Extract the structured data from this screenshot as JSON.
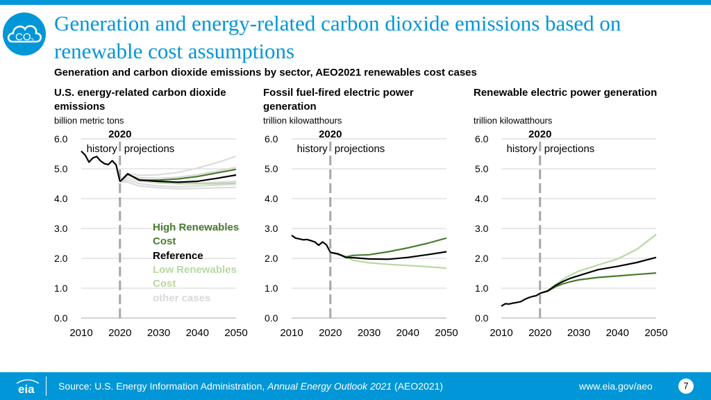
{
  "slide": {
    "title": "Generation and energy-related carbon dioxide emissions based on renewable cost assumptions",
    "subtitle": "Generation and carbon dioxide emissions by sector, AEO2021 renewables cost cases",
    "logo_text": "CO",
    "logo_subscript": "2"
  },
  "footer": {
    "source_prefix": "Source: U.S. Energy Information Administration, ",
    "source_italic": "Annual Energy Outlook 2021",
    "source_suffix": " (AEO2021)",
    "url": "www.eia.gov/aeo",
    "page_number": "7",
    "logo_text": "eia"
  },
  "colors": {
    "brand_blue": "#0096d7",
    "high_renewables": "#4a7a2e",
    "reference": "#000000",
    "low_renewables": "#b7d9a0",
    "other_cases": "#d9d9d9",
    "divider": "#a6a6a6"
  },
  "legend": {
    "high_renewables": "High Renewables Cost",
    "reference": "Reference",
    "low_renewables": "Low Renewables Cost",
    "other_cases": "other cases"
  },
  "chart_data": [
    {
      "type": "line",
      "title": "U.S. energy-related carbon dioxide emissions",
      "unit": "billion metric tons",
      "divider_year": "2020",
      "history_label": "history",
      "projections_label": "projections",
      "xlim": [
        2010,
        2050
      ],
      "ylim": [
        0,
        6
      ],
      "xticks": [
        "2010",
        "2020",
        "2030",
        "2040",
        "2050"
      ],
      "yticks": [
        "0.0",
        "1.0",
        "2.0",
        "3.0",
        "4.0",
        "5.0",
        "6.0"
      ],
      "history": {
        "x": [
          2010,
          2011,
          2012,
          2013,
          2014,
          2015,
          2016,
          2017,
          2018,
          2019,
          2020
        ],
        "values": [
          5.59,
          5.46,
          5.22,
          5.36,
          5.41,
          5.26,
          5.17,
          5.14,
          5.27,
          5.13,
          4.57
        ]
      },
      "series": [
        {
          "name": "other cases",
          "color": "#d9d9d9",
          "x": [
            2020,
            2022,
            2025,
            2030,
            2035,
            2040,
            2045,
            2050
          ],
          "values": [
            4.57,
            4.85,
            4.78,
            4.8,
            4.88,
            5.02,
            5.2,
            5.42
          ]
        },
        {
          "name": "other cases",
          "color": "#d9d9d9",
          "x": [
            2020,
            2022,
            2025,
            2030,
            2035,
            2040,
            2045,
            2050
          ],
          "values": [
            4.57,
            4.78,
            4.7,
            4.68,
            4.72,
            4.8,
            4.92,
            5.05
          ]
        },
        {
          "name": "other cases",
          "color": "#d9d9d9",
          "x": [
            2020,
            2022,
            2025,
            2030,
            2035,
            2040,
            2045,
            2050
          ],
          "values": [
            4.57,
            4.7,
            4.58,
            4.52,
            4.5,
            4.52,
            4.55,
            4.58
          ]
        },
        {
          "name": "other cases",
          "color": "#d9d9d9",
          "x": [
            2020,
            2022,
            2025,
            2030,
            2035,
            2040,
            2045,
            2050
          ],
          "values": [
            4.57,
            4.62,
            4.5,
            4.42,
            4.4,
            4.42,
            4.45,
            4.48
          ]
        },
        {
          "name": "other cases",
          "color": "#d9d9d9",
          "x": [
            2020,
            2022,
            2025,
            2030,
            2035,
            2040,
            2045,
            2050
          ],
          "values": [
            4.57,
            4.55,
            4.42,
            4.36,
            4.33,
            4.34,
            4.36,
            4.38
          ]
        },
        {
          "name": "Low Renewables Cost",
          "color": "#b7d9a0",
          "x": [
            2020,
            2022,
            2025,
            2030,
            2035,
            2040,
            2045,
            2050
          ],
          "values": [
            4.57,
            4.8,
            4.65,
            4.55,
            4.5,
            4.5,
            4.5,
            4.52
          ]
        },
        {
          "name": "High Renewables Cost",
          "color": "#4a7a2e",
          "x": [
            2020,
            2022,
            2025,
            2030,
            2035,
            2040,
            2045,
            2050
          ],
          "values": [
            4.57,
            4.82,
            4.62,
            4.62,
            4.66,
            4.74,
            4.86,
            4.98
          ]
        },
        {
          "name": "Reference",
          "color": "#000000",
          "x": [
            2020,
            2022,
            2025,
            2030,
            2035,
            2040,
            2045,
            2050
          ],
          "values": [
            4.57,
            4.83,
            4.62,
            4.58,
            4.55,
            4.58,
            4.68,
            4.79
          ]
        }
      ]
    },
    {
      "type": "line",
      "title": "Fossil fuel-fired electric power generation",
      "unit": "trillion kilowatthours",
      "divider_year": "2020",
      "history_label": "history",
      "projections_label": "projections",
      "xlim": [
        2010,
        2050
      ],
      "ylim": [
        0,
        6
      ],
      "xticks": [
        "2010",
        "2020",
        "2030",
        "2040",
        "2050"
      ],
      "yticks": [
        "0.0",
        "1.0",
        "2.0",
        "3.0",
        "4.0",
        "5.0",
        "6.0"
      ],
      "history": {
        "x": [
          2010,
          2011,
          2012,
          2013,
          2014,
          2015,
          2016,
          2017,
          2018,
          2019,
          2020
        ],
        "values": [
          2.77,
          2.68,
          2.65,
          2.62,
          2.63,
          2.59,
          2.55,
          2.44,
          2.55,
          2.45,
          2.2
        ]
      },
      "series": [
        {
          "name": "Low Renewables Cost",
          "color": "#b7d9a0",
          "x": [
            2020,
            2022,
            2024,
            2026,
            2030,
            2035,
            2040,
            2045,
            2050
          ],
          "values": [
            2.2,
            2.12,
            2.05,
            1.93,
            1.85,
            1.8,
            1.76,
            1.72,
            1.67
          ]
        },
        {
          "name": "High Renewables Cost",
          "color": "#4a7a2e",
          "x": [
            2020,
            2022,
            2024,
            2026,
            2030,
            2035,
            2040,
            2045,
            2050
          ],
          "values": [
            2.2,
            2.15,
            2.05,
            2.1,
            2.12,
            2.22,
            2.35,
            2.5,
            2.68
          ]
        },
        {
          "name": "Reference",
          "color": "#000000",
          "x": [
            2020,
            2022,
            2024,
            2026,
            2030,
            2035,
            2040,
            2045,
            2050
          ],
          "values": [
            2.2,
            2.15,
            2.03,
            2.02,
            1.98,
            1.97,
            2.03,
            2.12,
            2.22
          ]
        }
      ]
    },
    {
      "type": "line",
      "title": "Renewable electric power generation",
      "unit": "trillion kilowatthours",
      "divider_year": "2020",
      "history_label": "history",
      "projections_label": "projections",
      "xlim": [
        2010,
        2050
      ],
      "ylim": [
        0,
        6
      ],
      "xticks": [
        "2010",
        "2020",
        "2030",
        "2040",
        "2050"
      ],
      "yticks": [
        "0.0",
        "1.0",
        "2.0",
        "3.0",
        "4.0",
        "5.0",
        "6.0"
      ],
      "history": {
        "x": [
          2010,
          2011,
          2012,
          2013,
          2014,
          2015,
          2016,
          2017,
          2018,
          2019,
          2020
        ],
        "values": [
          0.4,
          0.48,
          0.47,
          0.5,
          0.52,
          0.55,
          0.62,
          0.68,
          0.72,
          0.75,
          0.83
        ]
      },
      "series": [
        {
          "name": "High Renewables Cost",
          "color": "#4a7a2e",
          "x": [
            2020,
            2022,
            2024,
            2026,
            2028,
            2030,
            2035,
            2040,
            2045,
            2050
          ],
          "values": [
            0.83,
            0.9,
            1.05,
            1.15,
            1.22,
            1.28,
            1.36,
            1.41,
            1.46,
            1.51
          ]
        },
        {
          "name": "Low Renewables Cost",
          "color": "#b7d9a0",
          "x": [
            2020,
            2022,
            2024,
            2026,
            2028,
            2030,
            2035,
            2040,
            2045,
            2050
          ],
          "values": [
            0.83,
            0.92,
            1.12,
            1.3,
            1.45,
            1.57,
            1.78,
            1.98,
            2.3,
            2.8
          ]
        },
        {
          "name": "Reference",
          "color": "#000000",
          "x": [
            2020,
            2022,
            2024,
            2026,
            2028,
            2030,
            2035,
            2040,
            2045,
            2050
          ],
          "values": [
            0.83,
            0.91,
            1.09,
            1.23,
            1.34,
            1.42,
            1.62,
            1.73,
            1.86,
            2.03
          ]
        }
      ]
    }
  ]
}
